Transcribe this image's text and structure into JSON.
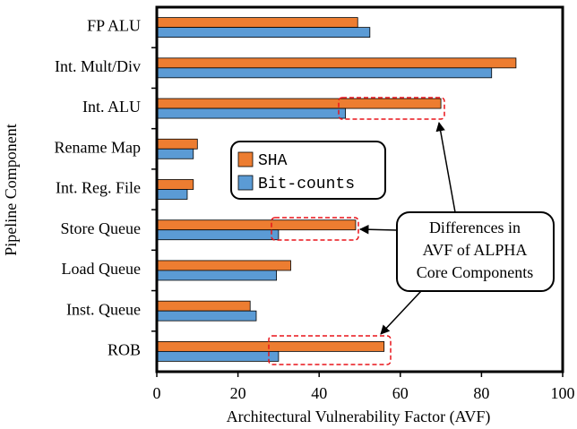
{
  "chart_data": {
    "type": "bar",
    "orientation": "horizontal",
    "categories": [
      "FP ALU",
      "Int. Mult/Div",
      "Int. ALU",
      "Rename Map",
      "Int. Reg. File",
      "Store Queue",
      "Load Queue",
      "Inst. Queue",
      "ROB"
    ],
    "series": [
      {
        "name": "SHA",
        "color": "#ED7D31",
        "values": [
          49.5,
          88.5,
          70,
          10,
          9,
          49,
          33,
          23,
          56
        ]
      },
      {
        "name": "Bit-counts",
        "color": "#5B9BD5",
        "values": [
          52.5,
          82.5,
          46.5,
          9,
          7.5,
          30,
          29.5,
          24.5,
          30
        ]
      }
    ],
    "xlim": [
      0,
      100
    ],
    "xticks": [
      0,
      20,
      40,
      60,
      80,
      100
    ],
    "x_label": "Architectural Vulnerability Factor (AVF)",
    "y_label": "Pipeline Component",
    "annotation": [
      "Differences in",
      "AVF of ALPHA",
      "Core Components"
    ],
    "grid": false
  }
}
